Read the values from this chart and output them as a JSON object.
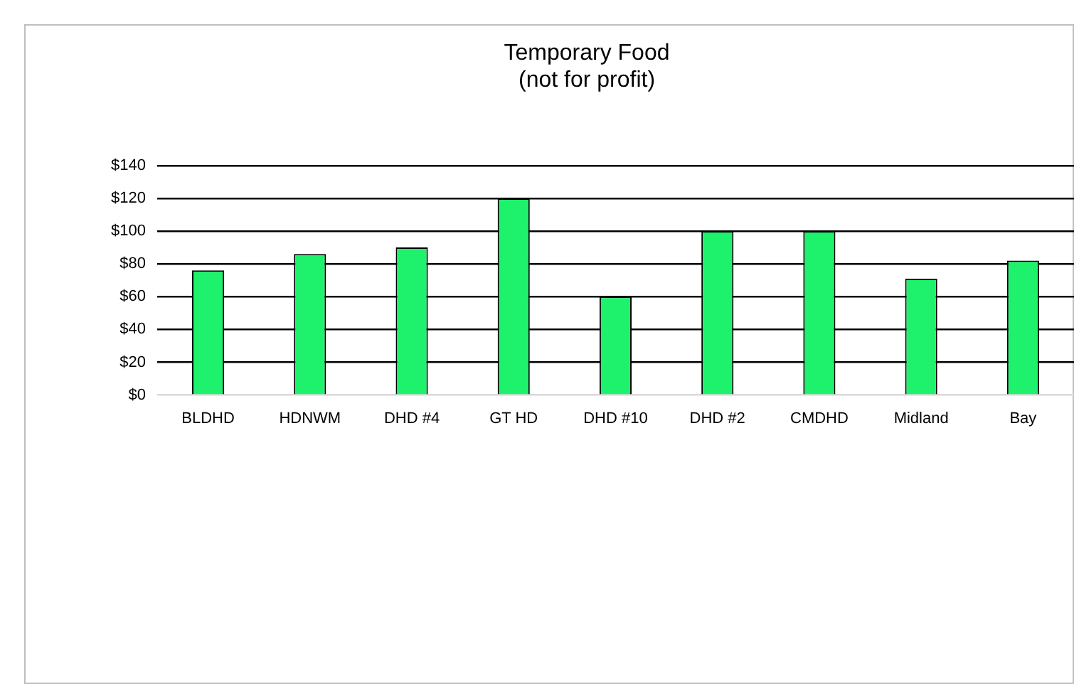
{
  "chart_data": {
    "type": "bar",
    "title": "Temporary Food\n(not for profit)",
    "categories": [
      "BLDHD",
      "HDNWM",
      "DHD #4",
      "GT HD",
      "DHD #10",
      "DHD #2",
      "CMDHD",
      "Midland",
      "Bay"
    ],
    "values": [
      76,
      86,
      90,
      120,
      60,
      100,
      100,
      71,
      82
    ],
    "color": "#1ef26c",
    "ylim": [
      0,
      140
    ],
    "yticks": [
      {
        "value": 0,
        "label": "$0"
      },
      {
        "value": 20,
        "label": "$20"
      },
      {
        "value": 40,
        "label": "$40"
      },
      {
        "value": 60,
        "label": "$60"
      },
      {
        "value": 80,
        "label": "$80"
      },
      {
        "value": 100,
        "label": "$100"
      },
      {
        "value": 120,
        "label": "$120"
      },
      {
        "value": 140,
        "label": "$140"
      }
    ],
    "grid": "y"
  }
}
